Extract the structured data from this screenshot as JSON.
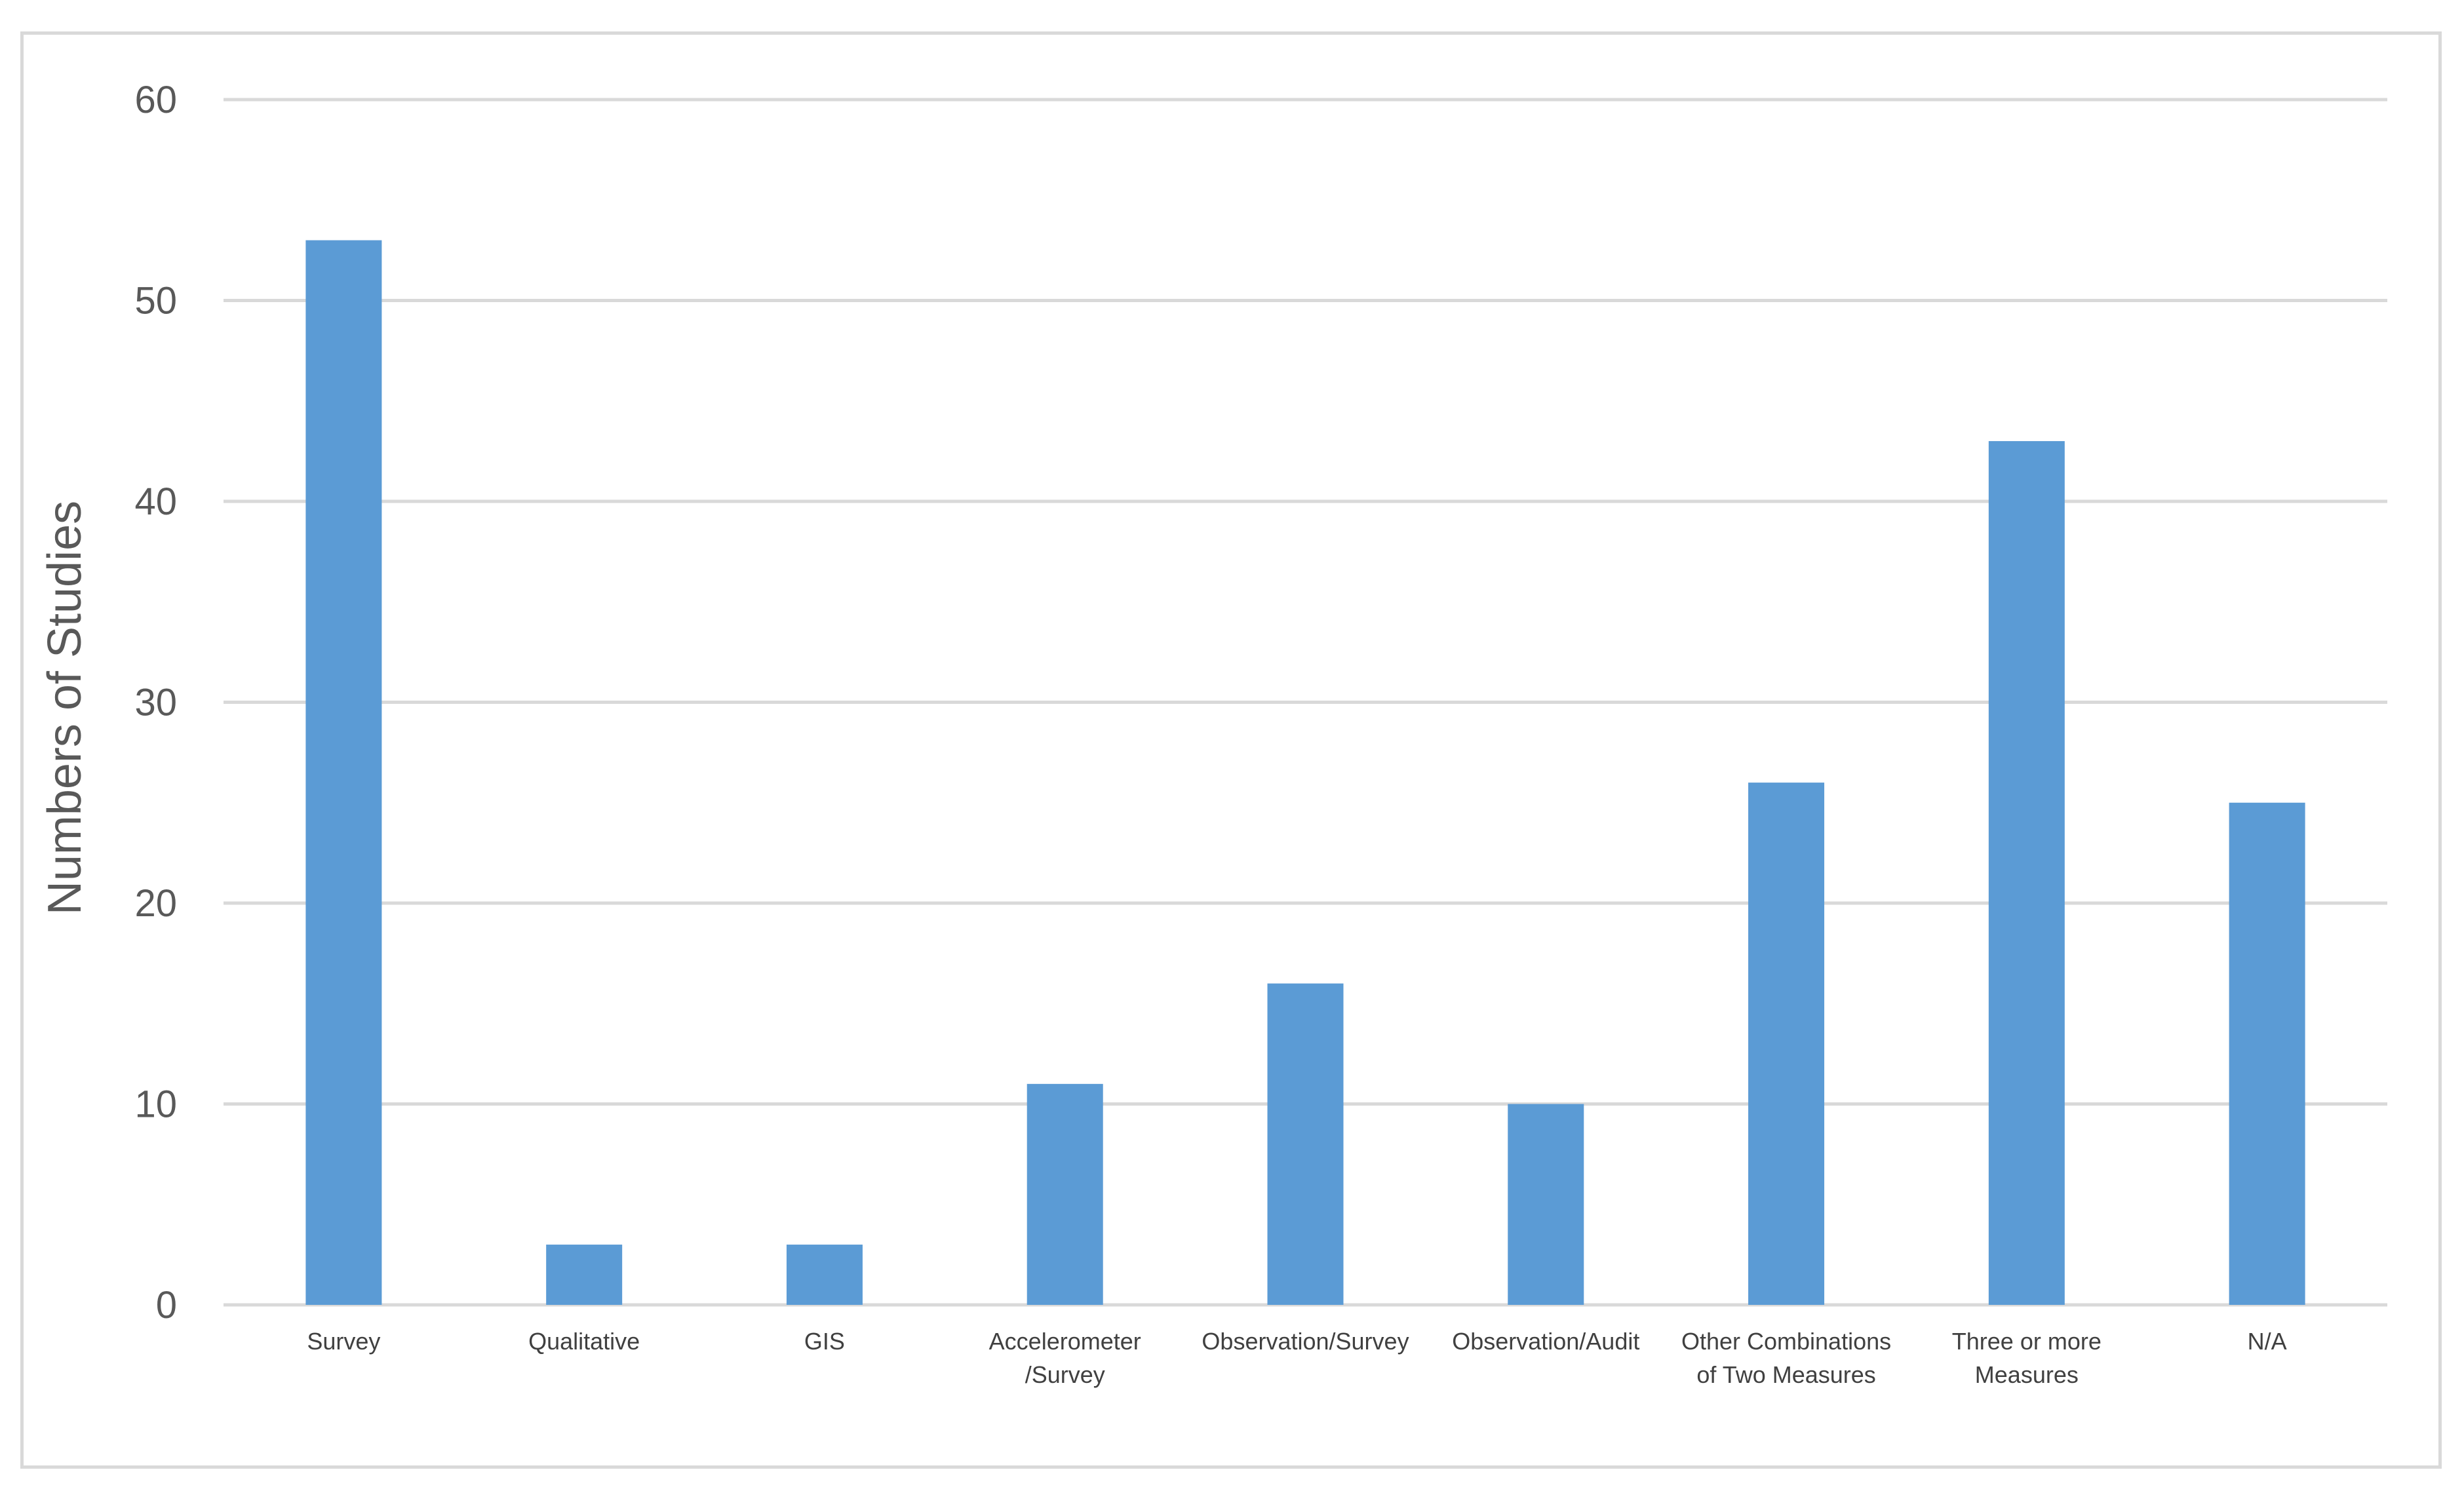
{
  "chart_data": {
    "type": "bar",
    "categories": [
      [
        "Survey"
      ],
      [
        "Qualitative"
      ],
      [
        "GIS"
      ],
      [
        "Accelerometer",
        "/Survey"
      ],
      [
        "Observation/Survey"
      ],
      [
        "Observation/Audit"
      ],
      [
        "Other Combinations",
        "of Two Measures"
      ],
      [
        "Three or more",
        "Measures"
      ],
      [
        "N/A"
      ]
    ],
    "values": [
      53,
      3,
      3,
      11,
      16,
      10,
      26,
      43,
      25
    ],
    "title": "",
    "xlabel": "",
    "ylabel": "Numbers of Studies",
    "ylim": [
      0,
      60
    ],
    "yticks": [
      0,
      10,
      20,
      30,
      40,
      50,
      60
    ],
    "grid": true,
    "legend": "none",
    "bar_color": "#5b9bd5",
    "grid_color": "#d9d9d9"
  }
}
